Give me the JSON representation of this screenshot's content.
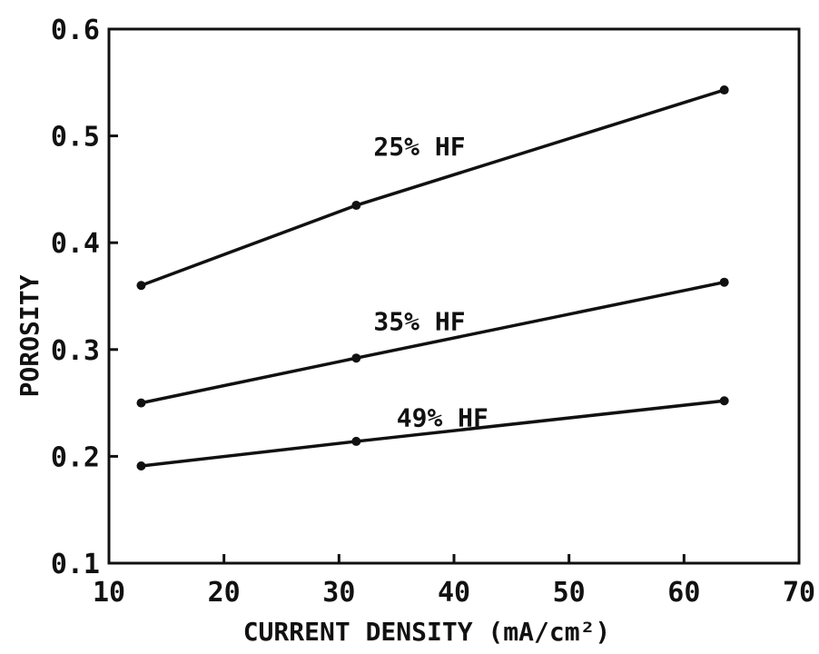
{
  "chart_data": {
    "type": "line",
    "title": "",
    "xlabel": "CURRENT DENSITY (mA/cm²)",
    "ylabel": "POROSITY",
    "xlim": [
      10,
      70
    ],
    "ylim": [
      0.1,
      0.6
    ],
    "xticks": [
      10,
      20,
      30,
      40,
      50,
      60,
      70
    ],
    "xtick_labels": [
      "10",
      "20",
      "30",
      "40",
      "50",
      "60",
      "70"
    ],
    "yticks": [
      0.1,
      0.2,
      0.3,
      0.4,
      0.5,
      0.6
    ],
    "ytick_labels": [
      "0.1",
      "0.2",
      "0.3",
      "0.4",
      "0.5",
      "0.6"
    ],
    "grid": false,
    "legend": "none",
    "series": [
      {
        "name": "25% HF",
        "x": [
          12.8,
          31.5,
          63.5
        ],
        "y": [
          0.36,
          0.435,
          0.543
        ]
      },
      {
        "name": "35% HF",
        "x": [
          12.8,
          31.5,
          63.5
        ],
        "y": [
          0.25,
          0.292,
          0.363
        ]
      },
      {
        "name": "49% HF",
        "x": [
          12.8,
          31.5,
          63.5
        ],
        "y": [
          0.191,
          0.214,
          0.252
        ]
      }
    ],
    "line_color": "#111111"
  }
}
